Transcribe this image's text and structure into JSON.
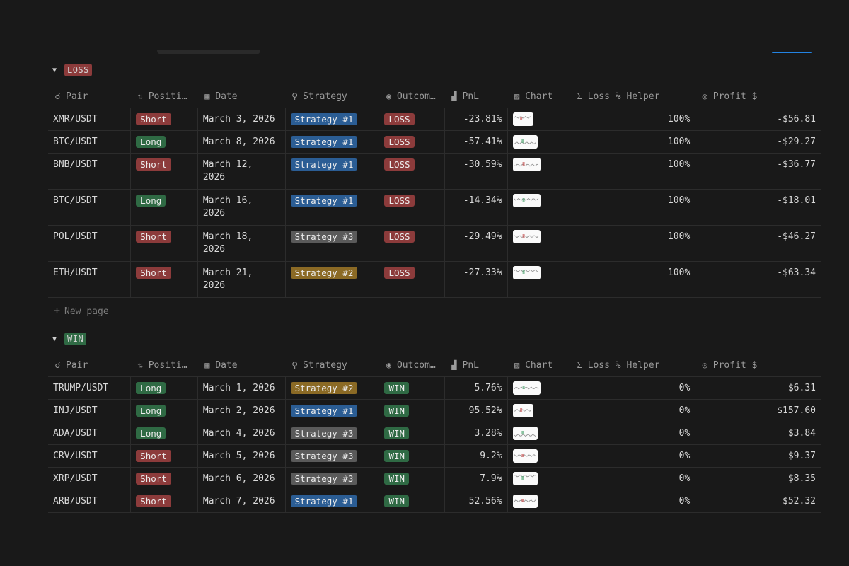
{
  "columns": [
    {
      "icon": "☌",
      "label": "Pair",
      "icon_name": "pair-icon"
    },
    {
      "icon": "⇅",
      "label": "Positi…",
      "icon_name": "position-icon"
    },
    {
      "icon": "▦",
      "label": "Date",
      "icon_name": "calendar-icon"
    },
    {
      "icon": "⚲",
      "label": "Strategy",
      "icon_name": "key-icon"
    },
    {
      "icon": "◉",
      "label": "Outcom…",
      "icon_name": "status-icon"
    },
    {
      "icon": "▟",
      "label": "PnL",
      "icon_name": "number-icon"
    },
    {
      "icon": "▨",
      "label": "Chart",
      "icon_name": "image-icon"
    },
    {
      "icon": "Σ",
      "label": "Loss % Helper",
      "icon_name": "sigma-icon"
    },
    {
      "icon": "◎",
      "label": "Profit $",
      "icon_name": "target-icon"
    }
  ],
  "colors": {
    "Short": "t-red",
    "Long": "t-green",
    "Strategy #1": "t-blue",
    "Strategy #2": "t-yellow",
    "Strategy #3": "t-gray",
    "LOSS": "t-red",
    "WIN": "t-green"
  },
  "groups": [
    {
      "name": "LOSS",
      "new_page_label": "New page",
      "rows": [
        {
          "pair": "XMR/USDT",
          "position": "Short",
          "date": "March 3, 2026",
          "strategy": "Strategy #1",
          "outcome": "LOSS",
          "pnl": "-23.81%",
          "helper": "100%",
          "profit": "-$56.81"
        },
        {
          "pair": "BTC/USDT",
          "position": "Long",
          "date": "March 8, 2026",
          "strategy": "Strategy #1",
          "outcome": "LOSS",
          "pnl": "-57.41%",
          "helper": "100%",
          "profit": "-$29.27"
        },
        {
          "pair": "BNB/USDT",
          "position": "Short",
          "date": "March 12, 2026",
          "strategy": "Strategy #1",
          "outcome": "LOSS",
          "pnl": "-30.59%",
          "helper": "100%",
          "profit": "-$36.77"
        },
        {
          "pair": "BTC/USDT",
          "position": "Long",
          "date": "March 16, 2026",
          "strategy": "Strategy #1",
          "outcome": "LOSS",
          "pnl": "-14.34%",
          "helper": "100%",
          "profit": "-$18.01"
        },
        {
          "pair": "POL/USDT",
          "position": "Short",
          "date": "March 18, 2026",
          "strategy": "Strategy #3",
          "outcome": "LOSS",
          "pnl": "-29.49%",
          "helper": "100%",
          "profit": "-$46.27"
        },
        {
          "pair": "ETH/USDT",
          "position": "Short",
          "date": "March 21, 2026",
          "strategy": "Strategy #2",
          "outcome": "LOSS",
          "pnl": "-27.33%",
          "helper": "100%",
          "profit": "-$63.34"
        }
      ]
    },
    {
      "name": "WIN",
      "rows": [
        {
          "pair": "TRUMP/USDT",
          "position": "Long",
          "date": "March 1, 2026",
          "strategy": "Strategy #2",
          "outcome": "WIN",
          "pnl": "5.76%",
          "helper": "0%",
          "profit": "$6.31"
        },
        {
          "pair": "INJ/USDT",
          "position": "Long",
          "date": "March 2, 2026",
          "strategy": "Strategy #1",
          "outcome": "WIN",
          "pnl": "95.52%",
          "helper": "0%",
          "profit": "$157.60"
        },
        {
          "pair": "ADA/USDT",
          "position": "Long",
          "date": "March 4, 2026",
          "strategy": "Strategy #3",
          "outcome": "WIN",
          "pnl": "3.28%",
          "helper": "0%",
          "profit": "$3.84"
        },
        {
          "pair": "CRV/USDT",
          "position": "Short",
          "date": "March 5, 2026",
          "strategy": "Strategy #3",
          "outcome": "WIN",
          "pnl": "9.2%",
          "helper": "0%",
          "profit": "$9.37"
        },
        {
          "pair": "XRP/USDT",
          "position": "Short",
          "date": "March 6, 2026",
          "strategy": "Strategy #3",
          "outcome": "WIN",
          "pnl": "7.9%",
          "helper": "0%",
          "profit": "$8.35"
        },
        {
          "pair": "ARB/USDT",
          "position": "Short",
          "date": "March 7, 2026",
          "strategy": "Strategy #1",
          "outcome": "WIN",
          "pnl": "52.56%",
          "helper": "0%",
          "profit": "$52.32"
        }
      ]
    }
  ]
}
